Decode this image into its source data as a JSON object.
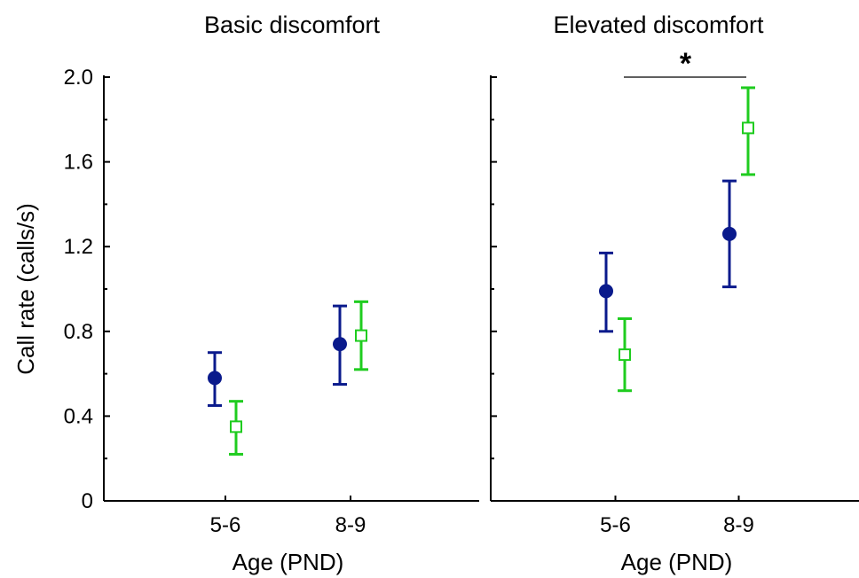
{
  "chart_data": {
    "type": "scatter",
    "ylabel": "Call rate (calls/s)",
    "ylim": [
      0,
      2.0
    ],
    "yticks": [
      "0",
      "0.4",
      "0.8",
      "1.2",
      "1.6",
      "2.0"
    ],
    "yticks_values": [
      0,
      0.4,
      0.8,
      1.2,
      1.6,
      2.0
    ],
    "categories": [
      "5-6",
      "8-9"
    ],
    "xlabel": "Age (PND)",
    "colors": {
      "series1": "#0a1a8c",
      "series2": "#1fcc1f"
    },
    "markers": {
      "series1": "filled-circle",
      "series2": "open-square"
    },
    "panels": [
      {
        "title": "Basic discomfort",
        "series": [
          {
            "values": [
              0.58,
              0.74
            ],
            "lower": [
              0.45,
              0.55
            ],
            "upper": [
              0.7,
              0.92
            ]
          },
          {
            "values": [
              0.35,
              0.78
            ],
            "lower": [
              0.22,
              0.62
            ],
            "upper": [
              0.47,
              0.94
            ]
          }
        ]
      },
      {
        "title": "Elevated discomfort",
        "series": [
          {
            "values": [
              0.99,
              1.26
            ],
            "lower": [
              0.8,
              1.01
            ],
            "upper": [
              1.17,
              1.51
            ]
          },
          {
            "values": [
              0.69,
              1.76
            ],
            "lower": [
              0.52,
              1.54
            ],
            "upper": [
              0.86,
              1.95
            ]
          }
        ],
        "significance": {
          "label": "*",
          "y": 2.0
        }
      }
    ]
  }
}
